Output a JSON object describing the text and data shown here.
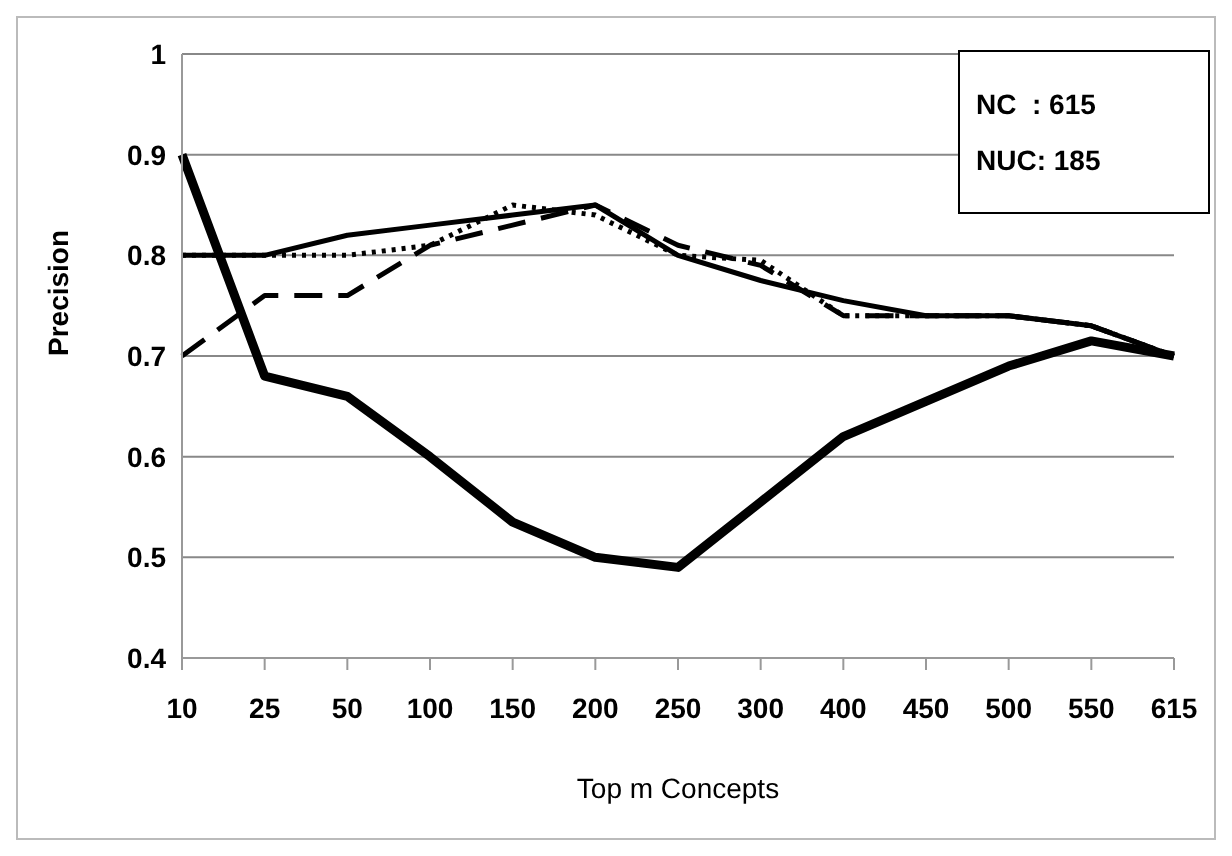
{
  "chart_data": {
    "type": "line",
    "xlabel": "Top m Concepts",
    "ylabel": "Precision",
    "categories": [
      "10",
      "25",
      "50",
      "100",
      "150",
      "200",
      "250",
      "300",
      "400",
      "450",
      "500",
      "550",
      "615"
    ],
    "series": [
      {
        "color": "#000000",
        "line_style": "solid",
        "values": [
          0.8,
          0.8,
          0.82,
          0.83,
          0.84,
          0.85,
          0.8,
          0.775,
          0.755,
          0.74,
          0.74,
          0.73,
          0.7
        ]
      },
      {
        "color": "#000000",
        "line_style": "dotted",
        "values": [
          0.8,
          0.8,
          0.8,
          0.81,
          0.85,
          0.84,
          0.8,
          0.795,
          0.74,
          0.74,
          0.74,
          0.73,
          0.7
        ]
      },
      {
        "color": "#000000",
        "line_style": "dashed",
        "values": [
          0.7,
          0.76,
          0.76,
          0.81,
          0.83,
          0.85,
          0.81,
          0.79,
          0.74,
          0.74,
          0.74,
          0.73,
          0.7
        ]
      },
      {
        "color": "#000000",
        "line_style": "solid",
        "values": [
          0.9,
          0.68,
          0.66,
          0.6,
          0.535,
          0.5,
          0.49,
          0.555,
          0.62,
          0.655,
          0.69,
          0.715,
          0.7
        ]
      }
    ],
    "ylim": [
      0.4,
      1
    ],
    "yticks": [
      0.4,
      0.5,
      0.6,
      0.7,
      0.8,
      0.9,
      1
    ],
    "grid": "y",
    "legend": false,
    "marker": "none",
    "annotations": [
      "NC  : 615",
      "NUC: 185"
    ]
  }
}
